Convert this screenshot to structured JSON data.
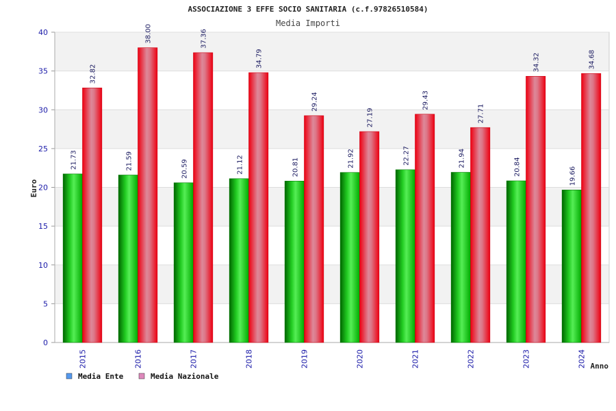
{
  "chart_data": {
    "type": "bar",
    "title": "ASSOCIAZIONE 3 EFFE SOCIO SANITARIA (c.f.97826510584)",
    "subtitle": "Media Importi",
    "xlabel": "Anno",
    "ylabel": "Euro",
    "ylim": [
      0,
      40
    ],
    "yticks": [
      0,
      5,
      10,
      15,
      20,
      25,
      30,
      35,
      40
    ],
    "grid": true,
    "legend_position": "bottom-left",
    "categories": [
      "2015",
      "2016",
      "2017",
      "2018",
      "2019",
      "2020",
      "2021",
      "2022",
      "2023",
      "2024"
    ],
    "series": [
      {
        "name": "Media Ente",
        "color": "#00aa00",
        "legend_color": "#5599ee",
        "values": [
          21.73,
          21.59,
          20.59,
          21.12,
          20.81,
          21.92,
          22.27,
          21.94,
          20.84,
          19.66
        ],
        "labels": [
          "21.73",
          "21.59",
          "20.59",
          "21.12",
          "20.81",
          "21.92",
          "22.27",
          "21.94",
          "20.84",
          "19.66"
        ]
      },
      {
        "name": "Media Nazionale",
        "color": "#ee1122",
        "legend_color": "#dd88bb",
        "values": [
          32.82,
          38.0,
          37.36,
          34.79,
          29.24,
          27.19,
          29.43,
          27.71,
          34.32,
          34.68
        ],
        "labels": [
          "32.82",
          "38.00",
          "37.36",
          "34.79",
          "29.24",
          "27.19",
          "29.43",
          "27.71",
          "34.32",
          "34.68"
        ]
      }
    ]
  }
}
